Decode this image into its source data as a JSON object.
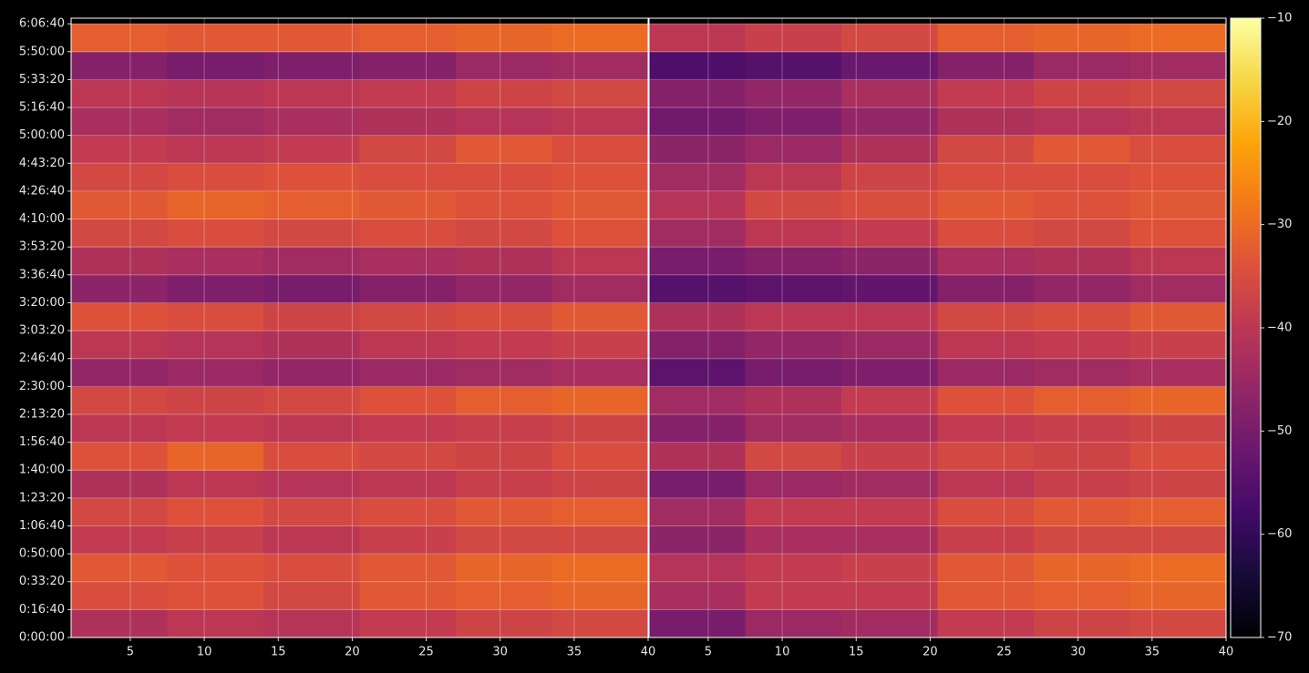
{
  "chart_data": [
    {
      "type": "heatmap",
      "x": [
        4.25,
        10.75,
        17.25,
        23.75,
        30.25,
        36.75
      ],
      "y": [
        500,
        1500,
        2500,
        3500,
        4500,
        5500,
        6500,
        7500,
        8500,
        9500,
        10500,
        11500,
        12500,
        13500,
        14500,
        15500,
        16500,
        17500,
        18500,
        19500,
        20500,
        21500
      ],
      "values": [
        [
          -42,
          -40,
          -41,
          -39,
          -37,
          -36
        ],
        [
          -35,
          -34,
          -36,
          -33,
          -32,
          -31
        ],
        [
          -33,
          -34,
          -35,
          -33,
          -31,
          -30
        ],
        [
          -39,
          -38,
          -40,
          -38,
          -36,
          -36
        ],
        [
          -36,
          -34,
          -36,
          -35,
          -33,
          -32
        ],
        [
          -42,
          -40,
          -41,
          -40,
          -38,
          -37
        ],
        [
          -34,
          -31,
          -35,
          -36,
          -37,
          -35
        ],
        [
          -40,
          -39,
          -40,
          -39,
          -38,
          -37
        ],
        [
          -36,
          -37,
          -36,
          -34,
          -32,
          -31
        ],
        [
          -46,
          -45,
          -46,
          -45,
          -44,
          -43
        ],
        [
          -40,
          -41,
          -42,
          -40,
          -39,
          -38
        ],
        [
          -34,
          -35,
          -37,
          -36,
          -35,
          -33
        ],
        [
          -47,
          -49,
          -50,
          -48,
          -46,
          -44
        ],
        [
          -42,
          -43,
          -44,
          -43,
          -42,
          -40
        ],
        [
          -36,
          -35,
          -36,
          -35,
          -36,
          -34
        ],
        [
          -33,
          -31,
          -32,
          -33,
          -34,
          -33
        ],
        [
          -36,
          -35,
          -34,
          -35,
          -35,
          -34
        ],
        [
          -39,
          -40,
          -39,
          -36,
          -33,
          -35
        ],
        [
          -43,
          -44,
          -43,
          -42,
          -41,
          -40
        ],
        [
          -40,
          -41,
          -40,
          -39,
          -37,
          -36
        ],
        [
          -48,
          -50,
          -49,
          -48,
          -45,
          -44
        ],
        [
          -32,
          -33,
          -33,
          -32,
          -31,
          -30
        ]
      ],
      "xlim": [
        1,
        40
      ],
      "ylim": [
        0,
        22200
      ],
      "xticks": [
        5,
        10,
        15,
        20,
        25,
        30,
        35,
        40
      ],
      "yticks": [
        {
          "value": 0,
          "label": "0:00:00"
        },
        {
          "value": 1000,
          "label": "0:16:40"
        },
        {
          "value": 2000,
          "label": "0:33:20"
        },
        {
          "value": 3000,
          "label": "0:50:00"
        },
        {
          "value": 4000,
          "label": "1:06:40"
        },
        {
          "value": 5000,
          "label": "1:23:20"
        },
        {
          "value": 6000,
          "label": "1:40:00"
        },
        {
          "value": 7000,
          "label": "1:56:40"
        },
        {
          "value": 8000,
          "label": "2:13:20"
        },
        {
          "value": 9000,
          "label": "2:30:00"
        },
        {
          "value": 10000,
          "label": "2:46:40"
        },
        {
          "value": 11000,
          "label": "3:03:20"
        },
        {
          "value": 12000,
          "label": "3:20:00"
        },
        {
          "value": 13000,
          "label": "3:36:40"
        },
        {
          "value": 14000,
          "label": "3:53:20"
        },
        {
          "value": 15000,
          "label": "4:10:00"
        },
        {
          "value": 16000,
          "label": "4:26:40"
        },
        {
          "value": 17000,
          "label": "4:43:20"
        },
        {
          "value": 18000,
          "label": "5:00:00"
        },
        {
          "value": 19000,
          "label": "5:16:40"
        },
        {
          "value": 20000,
          "label": "5:33:20"
        },
        {
          "value": 21000,
          "label": "5:50:00"
        },
        {
          "value": 22000,
          "label": "6:06:40"
        }
      ],
      "grid": true
    },
    {
      "type": "heatmap",
      "x": [
        4.25,
        10.75,
        17.25,
        23.75,
        30.25,
        36.75
      ],
      "y": [
        500,
        1500,
        2500,
        3500,
        4500,
        5500,
        6500,
        7500,
        8500,
        9500,
        10500,
        11500,
        12500,
        13500,
        14500,
        15500,
        16500,
        17500,
        18500,
        19500,
        20500,
        21500
      ],
      "values": [
        [
          -50,
          -45,
          -44,
          -39,
          -37,
          -36
        ],
        [
          -43,
          -39,
          -39,
          -33,
          -32,
          -31
        ],
        [
          -41,
          -39,
          -38,
          -33,
          -31,
          -30
        ],
        [
          -47,
          -43,
          -43,
          -38,
          -36,
          -36
        ],
        [
          -44,
          -39,
          -39,
          -35,
          -33,
          -32
        ],
        [
          -50,
          -45,
          -44,
          -40,
          -38,
          -37
        ],
        [
          -42,
          -36,
          -38,
          -36,
          -37,
          -35
        ],
        [
          -48,
          -44,
          -43,
          -39,
          -38,
          -37
        ],
        [
          -44,
          -42,
          -39,
          -34,
          -32,
          -31
        ],
        [
          -54,
          -50,
          -49,
          -45,
          -44,
          -43
        ],
        [
          -48,
          -46,
          -45,
          -40,
          -39,
          -38
        ],
        [
          -42,
          -40,
          -40,
          -36,
          -35,
          -33
        ],
        [
          -55,
          -54,
          -53,
          -48,
          -46,
          -44
        ],
        [
          -50,
          -48,
          -47,
          -43,
          -42,
          -40
        ],
        [
          -44,
          -40,
          -39,
          -35,
          -36,
          -34
        ],
        [
          -41,
          -36,
          -35,
          -33,
          -34,
          -33
        ],
        [
          -44,
          -40,
          -37,
          -35,
          -35,
          -34
        ],
        [
          -47,
          -45,
          -42,
          -36,
          -33,
          -35
        ],
        [
          -51,
          -49,
          -46,
          -42,
          -41,
          -40
        ],
        [
          -48,
          -46,
          -43,
          -39,
          -37,
          -36
        ],
        [
          -56,
          -55,
          -52,
          -48,
          -45,
          -44
        ],
        [
          -40,
          -38,
          -36,
          -32,
          -31,
          -30
        ]
      ],
      "xlim": [
        1,
        40
      ],
      "ylim": [
        0,
        22200
      ],
      "xticks": [
        5,
        10,
        15,
        20,
        25,
        30,
        35,
        40
      ],
      "grid": true
    },
    {
      "type": "colorbar",
      "colormap": "inferno",
      "clim": [
        -70,
        -10
      ],
      "ticks": [
        {
          "value": -10,
          "label": "−10"
        },
        {
          "value": -20,
          "label": "−20"
        },
        {
          "value": -30,
          "label": "−30"
        },
        {
          "value": -40,
          "label": "−40"
        },
        {
          "value": -50,
          "label": "−50"
        },
        {
          "value": -60,
          "label": "−60"
        },
        {
          "value": -70,
          "label": "−70"
        }
      ]
    }
  ]
}
